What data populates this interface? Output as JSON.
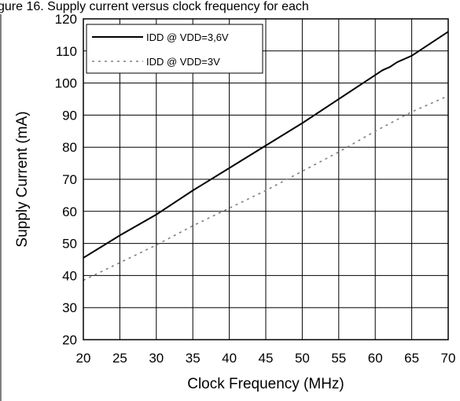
{
  "header_text": "gure 16. Supply current versus clock frequency for each",
  "chart_data": {
    "type": "line",
    "title": "",
    "xlabel": "Clock Frequency (MHz)",
    "ylabel": "Supply Current (mA)",
    "xlim": [
      20,
      70
    ],
    "ylim": [
      20,
      120
    ],
    "x_ticks": [
      "20",
      "25",
      "30",
      "35",
      "40",
      "45",
      "50",
      "55",
      "60",
      "65",
      "70"
    ],
    "y_ticks": [
      "20",
      "30",
      "40",
      "50",
      "60",
      "70",
      "80",
      "90",
      "100",
      "110",
      "120"
    ],
    "grid": true,
    "legend_position": "top-left",
    "series": [
      {
        "name": "IDD @ VDD=3,6V",
        "style": "solid",
        "color": "#000000",
        "x": [
          20,
          25,
          30,
          35,
          40,
          45,
          50,
          55,
          60,
          61,
          62,
          63,
          64,
          65,
          66,
          67,
          68,
          69,
          70
        ],
        "y": [
          45.5,
          52.5,
          59,
          66.5,
          73.5,
          80.5,
          87.5,
          95,
          102.5,
          104,
          105,
          106.5,
          107.5,
          108.5,
          110,
          111.5,
          113,
          114.5,
          116
        ]
      },
      {
        "name": "IDD @ VDD=3V",
        "style": "dotted",
        "color": "#808080",
        "x": [
          20,
          25,
          30,
          35,
          40,
          45,
          50,
          55,
          60,
          65,
          70
        ],
        "y": [
          38.5,
          44,
          49.5,
          55.5,
          61,
          66.5,
          72.5,
          78.5,
          85,
          91,
          96
        ]
      }
    ]
  }
}
